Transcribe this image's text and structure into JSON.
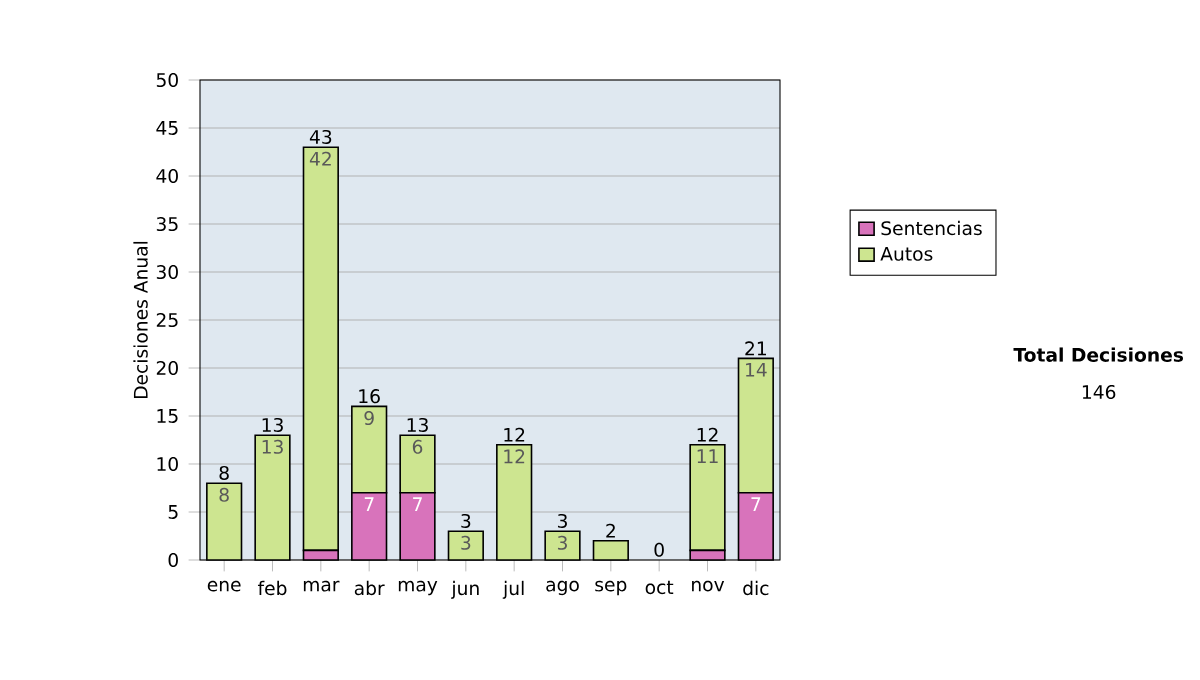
{
  "chart_data": {
    "type": "bar",
    "stacked": true,
    "ylabel": "Decisiones Anual",
    "categories": [
      "ene",
      "feb",
      "mar",
      "abr",
      "may",
      "jun",
      "jul",
      "ago",
      "sep",
      "oct",
      "nov",
      "dic"
    ],
    "series": [
      {
        "name": "Sentencias",
        "color": "#d873bb",
        "values": [
          0,
          0,
          1,
          7,
          7,
          0,
          0,
          0,
          0,
          0,
          1,
          7
        ],
        "value_labels": [
          null,
          null,
          null,
          "7",
          "7",
          null,
          null,
          null,
          null,
          null,
          null,
          "7"
        ]
      },
      {
        "name": "Autos",
        "color": "#cde590",
        "values": [
          8,
          13,
          42,
          9,
          6,
          3,
          12,
          3,
          2,
          0,
          11,
          14
        ],
        "value_labels": [
          "8",
          "13",
          "42",
          "9",
          "6",
          "3",
          "12",
          "3",
          null,
          null,
          "11",
          "14"
        ]
      }
    ],
    "totals": [
      "8",
      "13",
      "43",
      "16",
      "13",
      "3",
      "12",
      "3",
      "2",
      "0",
      "12",
      "21"
    ],
    "ylim": [
      0,
      50
    ],
    "yticks": [
      0,
      5,
      10,
      15,
      20,
      25,
      30,
      35,
      40,
      45,
      50
    ],
    "grid": "y",
    "legend": "right",
    "annotations": [
      "Total Decisiones",
      "146"
    ]
  }
}
